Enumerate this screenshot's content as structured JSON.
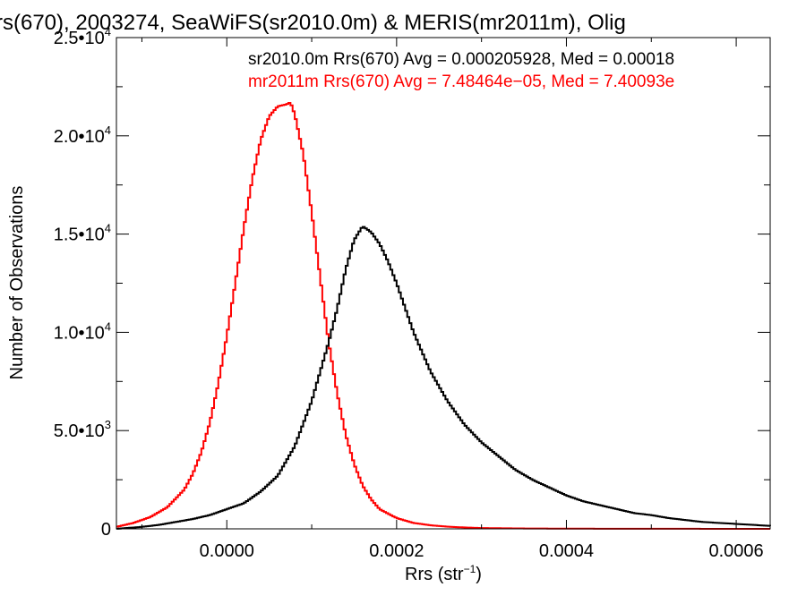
{
  "chart_data": {
    "type": "line",
    "step": true,
    "title": "rs(670), 2003274, SeaWiFS(sr2010.0m) & MERIS(mr2011m), Olig",
    "xlabel": "Rrs (str",
    "xlabel_sup": "−1",
    "xlabel_close": ")",
    "ylabel": "Number of Observations",
    "xlim": [
      -0.00013,
      0.00064
    ],
    "ylim": [
      0,
      25000
    ],
    "x_ticks": [
      0.0,
      0.0002,
      0.0004,
      0.0006
    ],
    "x_tick_labels": [
      "0.0000",
      "0.0002",
      "0.0004",
      "0.0006"
    ],
    "y_ticks": [
      0,
      5000,
      10000,
      15000,
      20000,
      25000
    ],
    "y_tick_labels": [
      {
        "base": "0",
        "exp": ""
      },
      {
        "base": "5.0•10",
        "exp": "3"
      },
      {
        "base": "1.0•10",
        "exp": "4"
      },
      {
        "base": "1.5•10",
        "exp": "4"
      },
      {
        "base": "2.0•10",
        "exp": "4"
      },
      {
        "base": "2.5•10",
        "exp": "4"
      }
    ],
    "grid": false,
    "series": [
      {
        "name": "sr2010.0m",
        "color": "#000000",
        "annotation": "sr2010.0m Rrs(670) Avg = 0.000205928, Med = 0.00018",
        "x": [
          -0.00013,
          -0.0001,
          -8e-05,
          -6e-05,
          -4e-05,
          -2e-05,
          0.0,
          2e-05,
          4e-05,
          6e-05,
          8e-05,
          0.0001,
          0.00012,
          0.00013,
          0.00014,
          0.00015,
          0.00016,
          0.00017,
          0.00018,
          0.00019,
          0.0002,
          0.00022,
          0.00024,
          0.00026,
          0.00028,
          0.0003,
          0.00032,
          0.00034,
          0.00036,
          0.00038,
          0.0004,
          0.00042,
          0.00044,
          0.00046,
          0.00048,
          0.0005,
          0.00052,
          0.00054,
          0.00056,
          0.00058,
          0.0006,
          0.00062,
          0.00064
        ],
        "y": [
          0,
          100,
          200,
          350,
          500,
          700,
          1000,
          1300,
          1900,
          2700,
          4200,
          6500,
          9500,
          11200,
          13200,
          14700,
          15400,
          15100,
          14500,
          13600,
          12500,
          10000,
          8000,
          6500,
          5300,
          4400,
          3700,
          3000,
          2500,
          2100,
          1700,
          1400,
          1200,
          1000,
          800,
          700,
          550,
          450,
          350,
          300,
          250,
          200,
          150
        ]
      },
      {
        "name": "mr2011m",
        "color": "#ff0000",
        "annotation": "mr2011m Rrs(670) Avg = 7.48464e−05, Med = 7.40093e",
        "x": [
          -0.00013,
          -0.00011,
          -9e-05,
          -7e-05,
          -5e-05,
          -4e-05,
          -3e-05,
          -2e-05,
          -1e-05,
          0.0,
          1e-05,
          2e-05,
          3e-05,
          4e-05,
          5e-05,
          6e-05,
          7e-05,
          7.5e-05,
          8e-05,
          9e-05,
          0.0001,
          0.00011,
          0.00012,
          0.00013,
          0.00014,
          0.00015,
          0.00016,
          0.00017,
          0.00018,
          0.0002,
          0.00022,
          0.00024,
          0.00026,
          0.00028,
          0.0003,
          0.00035,
          0.0004,
          0.0005,
          0.00064
        ],
        "y": [
          100,
          300,
          600,
          1100,
          2000,
          2800,
          3900,
          5400,
          7400,
          9800,
          12500,
          15300,
          17800,
          19800,
          21000,
          21500,
          21600,
          21700,
          21100,
          19100,
          16100,
          12800,
          9500,
          6900,
          4800,
          3300,
          2200,
          1500,
          1000,
          550,
          300,
          180,
          110,
          70,
          40,
          20,
          10,
          5,
          0
        ]
      }
    ]
  }
}
